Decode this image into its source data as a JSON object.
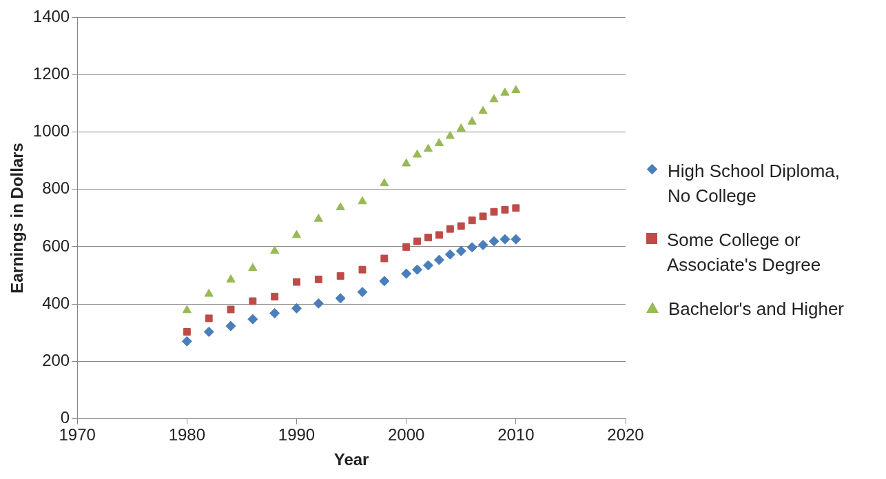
{
  "chart_data": {
    "type": "scatter",
    "xlabel": "Year",
    "ylabel": "Earnings in Dollars",
    "x": [
      1980,
      1982,
      1984,
      1986,
      1988,
      1990,
      1992,
      1994,
      1996,
      1998,
      2000,
      2001,
      2002,
      2003,
      2004,
      2005,
      2006,
      2007,
      2008,
      2009,
      2010
    ],
    "series": [
      {
        "name": "High School Diploma, No College",
        "color": "#4a7ebb",
        "marker": "diamond",
        "values": [
          270,
          303,
          323,
          347,
          368,
          385,
          402,
          420,
          442,
          480,
          506,
          520,
          535,
          554,
          573,
          585,
          598,
          606,
          619,
          626,
          626
        ]
      },
      {
        "name": "Some College or Associate's Degree",
        "color": "#be4b48",
        "marker": "square",
        "values": [
          303,
          350,
          381,
          410,
          426,
          477,
          486,
          498,
          520,
          559,
          599,
          619,
          632,
          641,
          662,
          672,
          692,
          706,
          722,
          729,
          735
        ]
      },
      {
        "name": "Bachelor's and Higher",
        "color": "#98b954",
        "marker": "triangle",
        "values": [
          378,
          435,
          485,
          525,
          585,
          640,
          697,
          737,
          758,
          821,
          890,
          921,
          941,
          961,
          986,
          1012,
          1036,
          1073,
          1114,
          1137,
          1146
        ]
      }
    ],
    "xlim": [
      1970,
      2020
    ],
    "xticks": [
      1970,
      1980,
      1990,
      2000,
      2010,
      2020
    ],
    "ylim": [
      0,
      1400
    ],
    "yticks": [
      0,
      200,
      400,
      600,
      800,
      1000,
      1200,
      1400
    ],
    "grid": "y",
    "legend": "right"
  }
}
